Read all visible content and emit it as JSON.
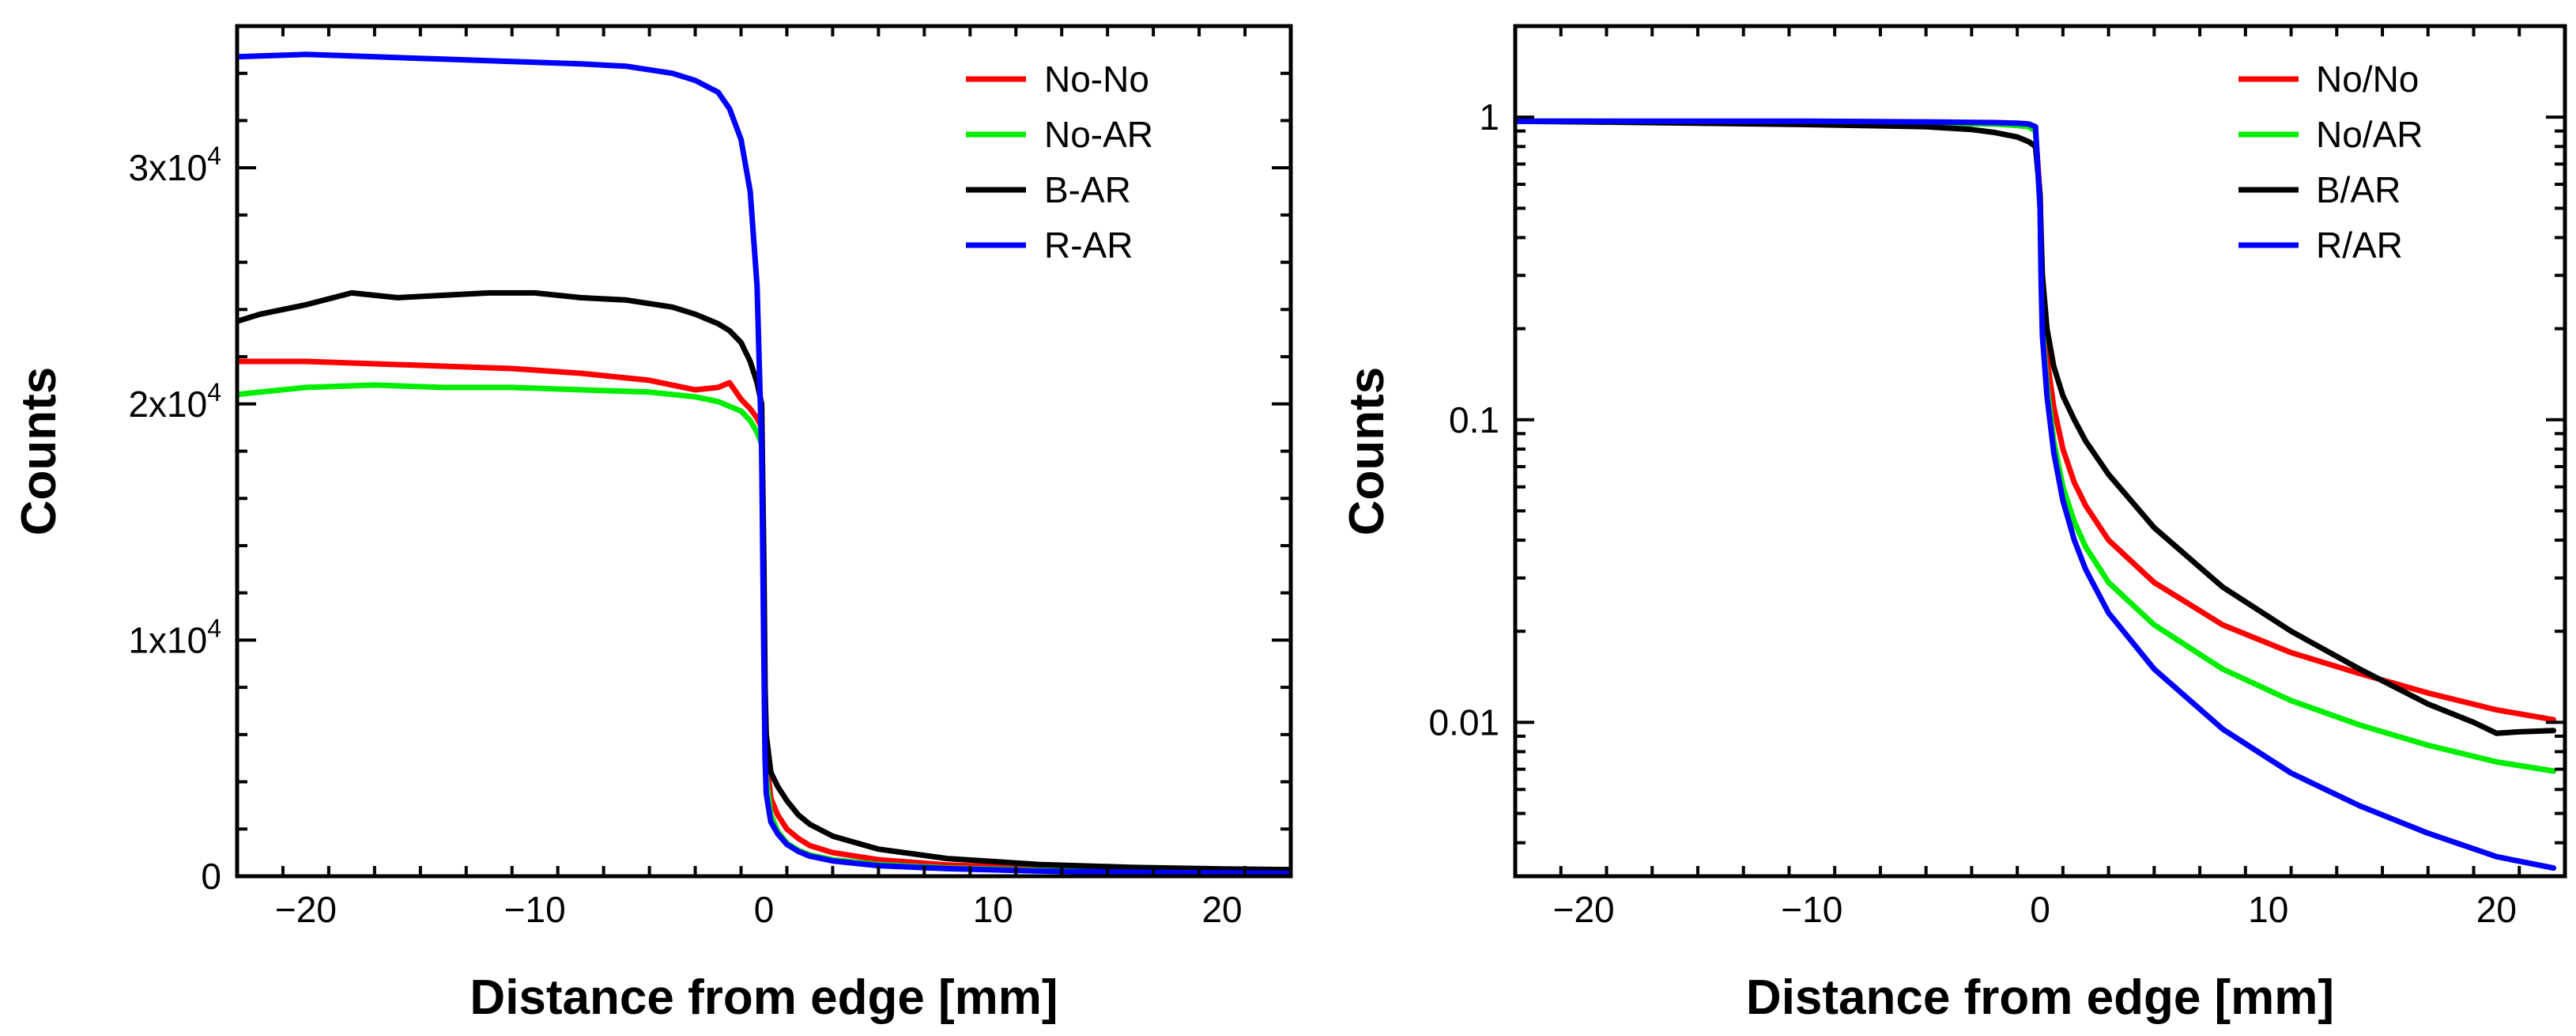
{
  "chart_data": [
    {
      "type": "line",
      "title": "",
      "xlabel": "Distance from edge [mm]",
      "ylabel": "Counts",
      "xlim": [
        -23,
        23
      ],
      "ylim": [
        0,
        36000
      ],
      "yscale": "linear",
      "legend_position": "top-right",
      "x_ticks": [
        {
          "value": -20,
          "label": "−20"
        },
        {
          "value": -10,
          "label": "−10"
        },
        {
          "value": 0,
          "label": "0"
        },
        {
          "value": 10,
          "label": "10"
        },
        {
          "value": 20,
          "label": "20"
        }
      ],
      "y_ticks": [
        {
          "value": 0,
          "label": "0",
          "base": "0",
          "sup": ""
        },
        {
          "value": 10000,
          "label": "1x10^4",
          "base": "1x10",
          "sup": "4"
        },
        {
          "value": 20000,
          "label": "2x10^4",
          "base": "2x10",
          "sup": "4"
        },
        {
          "value": 30000,
          "label": "3x10^4",
          "base": "3x10",
          "sup": "4"
        }
      ],
      "series": [
        {
          "name": "No-No",
          "color": "#ff0000",
          "x": [
            -23,
            -20,
            -17,
            -14,
            -11,
            -8,
            -5,
            -3,
            -2,
            -1.5,
            -1,
            -0.6,
            -0.3,
            -0.1,
            0,
            0.05,
            0.1,
            0.3,
            0.6,
            1,
            1.5,
            2,
            3,
            5,
            8,
            12,
            16,
            20,
            23
          ],
          "y": [
            21800,
            21800,
            21700,
            21600,
            21500,
            21300,
            21000,
            20600,
            20700,
            20900,
            20200,
            19800,
            19400,
            19000,
            12000,
            7000,
            5000,
            3300,
            2600,
            2000,
            1600,
            1300,
            1000,
            700,
            480,
            340,
            280,
            240,
            220
          ]
        },
        {
          "name": "No-AR",
          "color": "#00ee00",
          "x": [
            -23,
            -20,
            -17,
            -14,
            -11,
            -8,
            -5,
            -3,
            -2,
            -1,
            -0.6,
            -0.3,
            -0.1,
            0,
            0.05,
            0.1,
            0.3,
            0.6,
            1,
            1.5,
            2,
            3,
            5,
            8,
            12,
            16,
            20,
            23
          ],
          "y": [
            20400,
            20700,
            20800,
            20700,
            20700,
            20600,
            20500,
            20300,
            20100,
            19700,
            19300,
            18800,
            18300,
            11000,
            6000,
            4200,
            2600,
            1900,
            1400,
            1100,
            900,
            700,
            500,
            350,
            250,
            200,
            170,
            150
          ]
        },
        {
          "name": "B-AR",
          "color": "#000000",
          "x": [
            -23,
            -22,
            -20,
            -18,
            -16,
            -14,
            -12,
            -10,
            -8,
            -6,
            -4,
            -3,
            -2,
            -1.5,
            -1,
            -0.6,
            -0.3,
            -0.1,
            0,
            0.05,
            0.1,
            0.3,
            0.6,
            1,
            1.5,
            2,
            3,
            5,
            8,
            12,
            16,
            20,
            23
          ],
          "y": [
            23500,
            23800,
            24200,
            24700,
            24500,
            24600,
            24700,
            24700,
            24500,
            24400,
            24100,
            23800,
            23400,
            23100,
            22600,
            21800,
            20900,
            20000,
            13000,
            8000,
            6000,
            4400,
            3800,
            3200,
            2600,
            2200,
            1700,
            1150,
            750,
            500,
            380,
            310,
            280
          ]
        },
        {
          "name": "R-AR",
          "color": "#0000ff",
          "x": [
            -23,
            -20,
            -17,
            -14,
            -11,
            -8,
            -6,
            -4,
            -3,
            -2,
            -1.5,
            -1,
            -0.6,
            -0.3,
            -0.1,
            0,
            0.05,
            0.1,
            0.3,
            0.6,
            1,
            1.5,
            2,
            3,
            5,
            8,
            12,
            16,
            20,
            23
          ],
          "y": [
            34700,
            34800,
            34700,
            34600,
            34500,
            34400,
            34300,
            34000,
            33700,
            33200,
            32500,
            31200,
            29000,
            25000,
            18000,
            9000,
            5000,
            3500,
            2300,
            1800,
            1350,
            1050,
            850,
            650,
            450,
            320,
            220,
            170,
            140,
            120
          ]
        }
      ]
    },
    {
      "type": "line",
      "title": "",
      "xlabel": "Distance from edge [mm]",
      "ylabel": "Counts",
      "xlim": [
        -23,
        23
      ],
      "ylim": [
        0.0031,
        2
      ],
      "yscale": "log",
      "legend_position": "top-right",
      "x_ticks": [
        {
          "value": -20,
          "label": "−20"
        },
        {
          "value": -10,
          "label": "−10"
        },
        {
          "value": 0,
          "label": "0"
        },
        {
          "value": 10,
          "label": "10"
        },
        {
          "value": 20,
          "label": "20"
        }
      ],
      "y_ticks": [
        {
          "value": 1,
          "label": "1"
        },
        {
          "value": 0.1,
          "label": "0.1"
        },
        {
          "value": 0.01,
          "label": "0.01"
        }
      ],
      "series": [
        {
          "name": "No/No",
          "color": "#ff0000",
          "x": [
            -23,
            -20,
            -15,
            -10,
            -5,
            -2,
            -1,
            -0.5,
            -0.2,
            0,
            0.05,
            0.1,
            0.3,
            0.6,
            1,
            1.5,
            2,
            3,
            5,
            8,
            11,
            14,
            17,
            20,
            22.5
          ],
          "y": [
            0.97,
            0.97,
            0.965,
            0.96,
            0.955,
            0.95,
            0.94,
            0.93,
            0.9,
            0.55,
            0.35,
            0.25,
            0.16,
            0.11,
            0.08,
            0.062,
            0.052,
            0.04,
            0.029,
            0.021,
            0.017,
            0.0145,
            0.0125,
            0.011,
            0.0102
          ]
        },
        {
          "name": "No/AR",
          "color": "#00ee00",
          "x": [
            -23,
            -20,
            -15,
            -10,
            -5,
            -2,
            -1,
            -0.5,
            -0.2,
            0,
            0.05,
            0.1,
            0.3,
            0.6,
            1,
            1.5,
            2,
            3,
            5,
            8,
            11,
            14,
            17,
            20,
            22.5
          ],
          "y": [
            0.97,
            0.97,
            0.965,
            0.96,
            0.955,
            0.95,
            0.94,
            0.93,
            0.9,
            0.5,
            0.3,
            0.2,
            0.13,
            0.085,
            0.06,
            0.046,
            0.038,
            0.029,
            0.021,
            0.015,
            0.0118,
            0.0098,
            0.0084,
            0.0074,
            0.0069
          ]
        },
        {
          "name": "B/AR",
          "color": "#000000",
          "x": [
            -23,
            -20,
            -15,
            -10,
            -5,
            -3,
            -2,
            -1,
            -0.5,
            -0.2,
            0,
            0.05,
            0.1,
            0.3,
            0.6,
            1,
            1.5,
            2,
            3,
            5,
            8,
            11,
            14,
            17,
            19,
            20,
            21,
            22.5
          ],
          "y": [
            0.97,
            0.965,
            0.955,
            0.945,
            0.93,
            0.91,
            0.89,
            0.86,
            0.83,
            0.8,
            0.55,
            0.4,
            0.3,
            0.2,
            0.15,
            0.12,
            0.1,
            0.085,
            0.066,
            0.044,
            0.028,
            0.02,
            0.015,
            0.0115,
            0.01,
            0.0092,
            0.0093,
            0.0094
          ]
        },
        {
          "name": "R/AR",
          "color": "#0000ff",
          "x": [
            -23,
            -20,
            -15,
            -10,
            -5,
            -2,
            -1,
            -0.5,
            -0.2,
            0,
            0.05,
            0.1,
            0.3,
            0.6,
            1,
            1.5,
            2,
            3,
            5,
            8,
            11,
            14,
            17,
            20,
            22.5
          ],
          "y": [
            0.97,
            0.97,
            0.97,
            0.97,
            0.965,
            0.96,
            0.955,
            0.95,
            0.93,
            0.5,
            0.28,
            0.19,
            0.12,
            0.078,
            0.054,
            0.04,
            0.032,
            0.023,
            0.015,
            0.0095,
            0.0068,
            0.0053,
            0.0043,
            0.0036,
            0.0033
          ]
        }
      ]
    }
  ]
}
